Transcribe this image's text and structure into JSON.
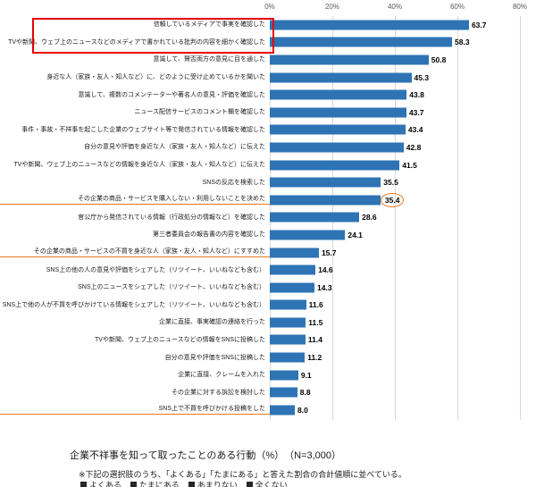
{
  "chart_data": {
    "type": "bar",
    "orientation": "horizontal",
    "title": "企業不祥事を知って取ったことのある行動（%）　（N=3,000）",
    "note": "※下記の選択肢のうち、「よくある」「たまにある」と答えた割合の合計値順に並べている。",
    "xlim": [
      0,
      80
    ],
    "x_ticks": [
      0,
      20,
      40,
      60,
      80
    ],
    "x_tick_labels": [
      "0%",
      "20%",
      "40%",
      "60%",
      "80%"
    ],
    "grid": true,
    "categories": [
      "信頼しているメディアで事実を確認した",
      "TVや新聞、ウェブ上のニュースなどのメディアで書かれている批判の内容を細かく確認した",
      "意識して、賛否両方の意見に目を通した",
      "身近な人（家族・友人・知人など）に、どのように受け止めているかを聞いた",
      "意識して、複数のコメンテーターや著名人の意見・評価を確認した",
      "ニュース配信サービスのコメント欄を確認した",
      "事件・事故・不祥事を起こした企業のウェブサイト等で発信されている情報を確認した",
      "自分の意見や評価を身近な人（家族・友人・知人など）に伝えた",
      "TVや新聞、ウェブ上のニュースなどの情報を身近な人（家族・友人・知人など）に伝えた",
      "SNSの反応を検索した",
      "その企業の商品・サービスを購入しない・利用しないことを決めた",
      "官公庁から発信されている情報（行政処分の情報など）を確認した",
      "第三者委員会の報告書の内容を確認した",
      "その企業の商品・サービスの不買を身近な人（家族・友人・知人など）にすすめた",
      "SNS上の他の人の意見や評価をシェアした（リツイート、いいねなども含む）",
      "SNS上のニュースをシェアした（リツイート、いいねなども含む）",
      "SNS上で他の人が不買を呼びかけている情報をシェアした（リツイート、いいねなども含む）",
      "企業に直接、事実確認の連絡を行った",
      "TVや新聞、ウェブ上のニュースなどの情報をSNSに投稿した",
      "自分の意見や評価をSNSに投稿した",
      "企業に直接、クレームを入れた",
      "その企業に対する訴訟を検討した",
      "SNS上で不買を呼びかける投稿をした"
    ],
    "values": [
      63.7,
      58.3,
      50.8,
      45.3,
      43.8,
      43.7,
      43.4,
      42.8,
      41.5,
      35.5,
      35.4,
      28.6,
      24.1,
      15.7,
      14.6,
      14.3,
      11.6,
      11.5,
      11.4,
      11.2,
      9.1,
      8.8,
      8.0
    ],
    "legend": [
      {
        "label": "よくある"
      },
      {
        "label": "たまにある"
      },
      {
        "label": "あまりない"
      },
      {
        "label": "全くない"
      }
    ],
    "legend_position": "bottom",
    "colors": {
      "bar": "#2e74b5",
      "gridline": "#d9d9d9",
      "annotation_red": "#e60000",
      "annotation_orange": "#e87722",
      "legend_swatch": "#262626"
    },
    "annotations": {
      "red_box_rows": [
        0,
        1
      ],
      "orange_circle_value_rows": [
        10
      ],
      "orange_underline_rows": [
        10,
        13,
        22
      ]
    }
  }
}
